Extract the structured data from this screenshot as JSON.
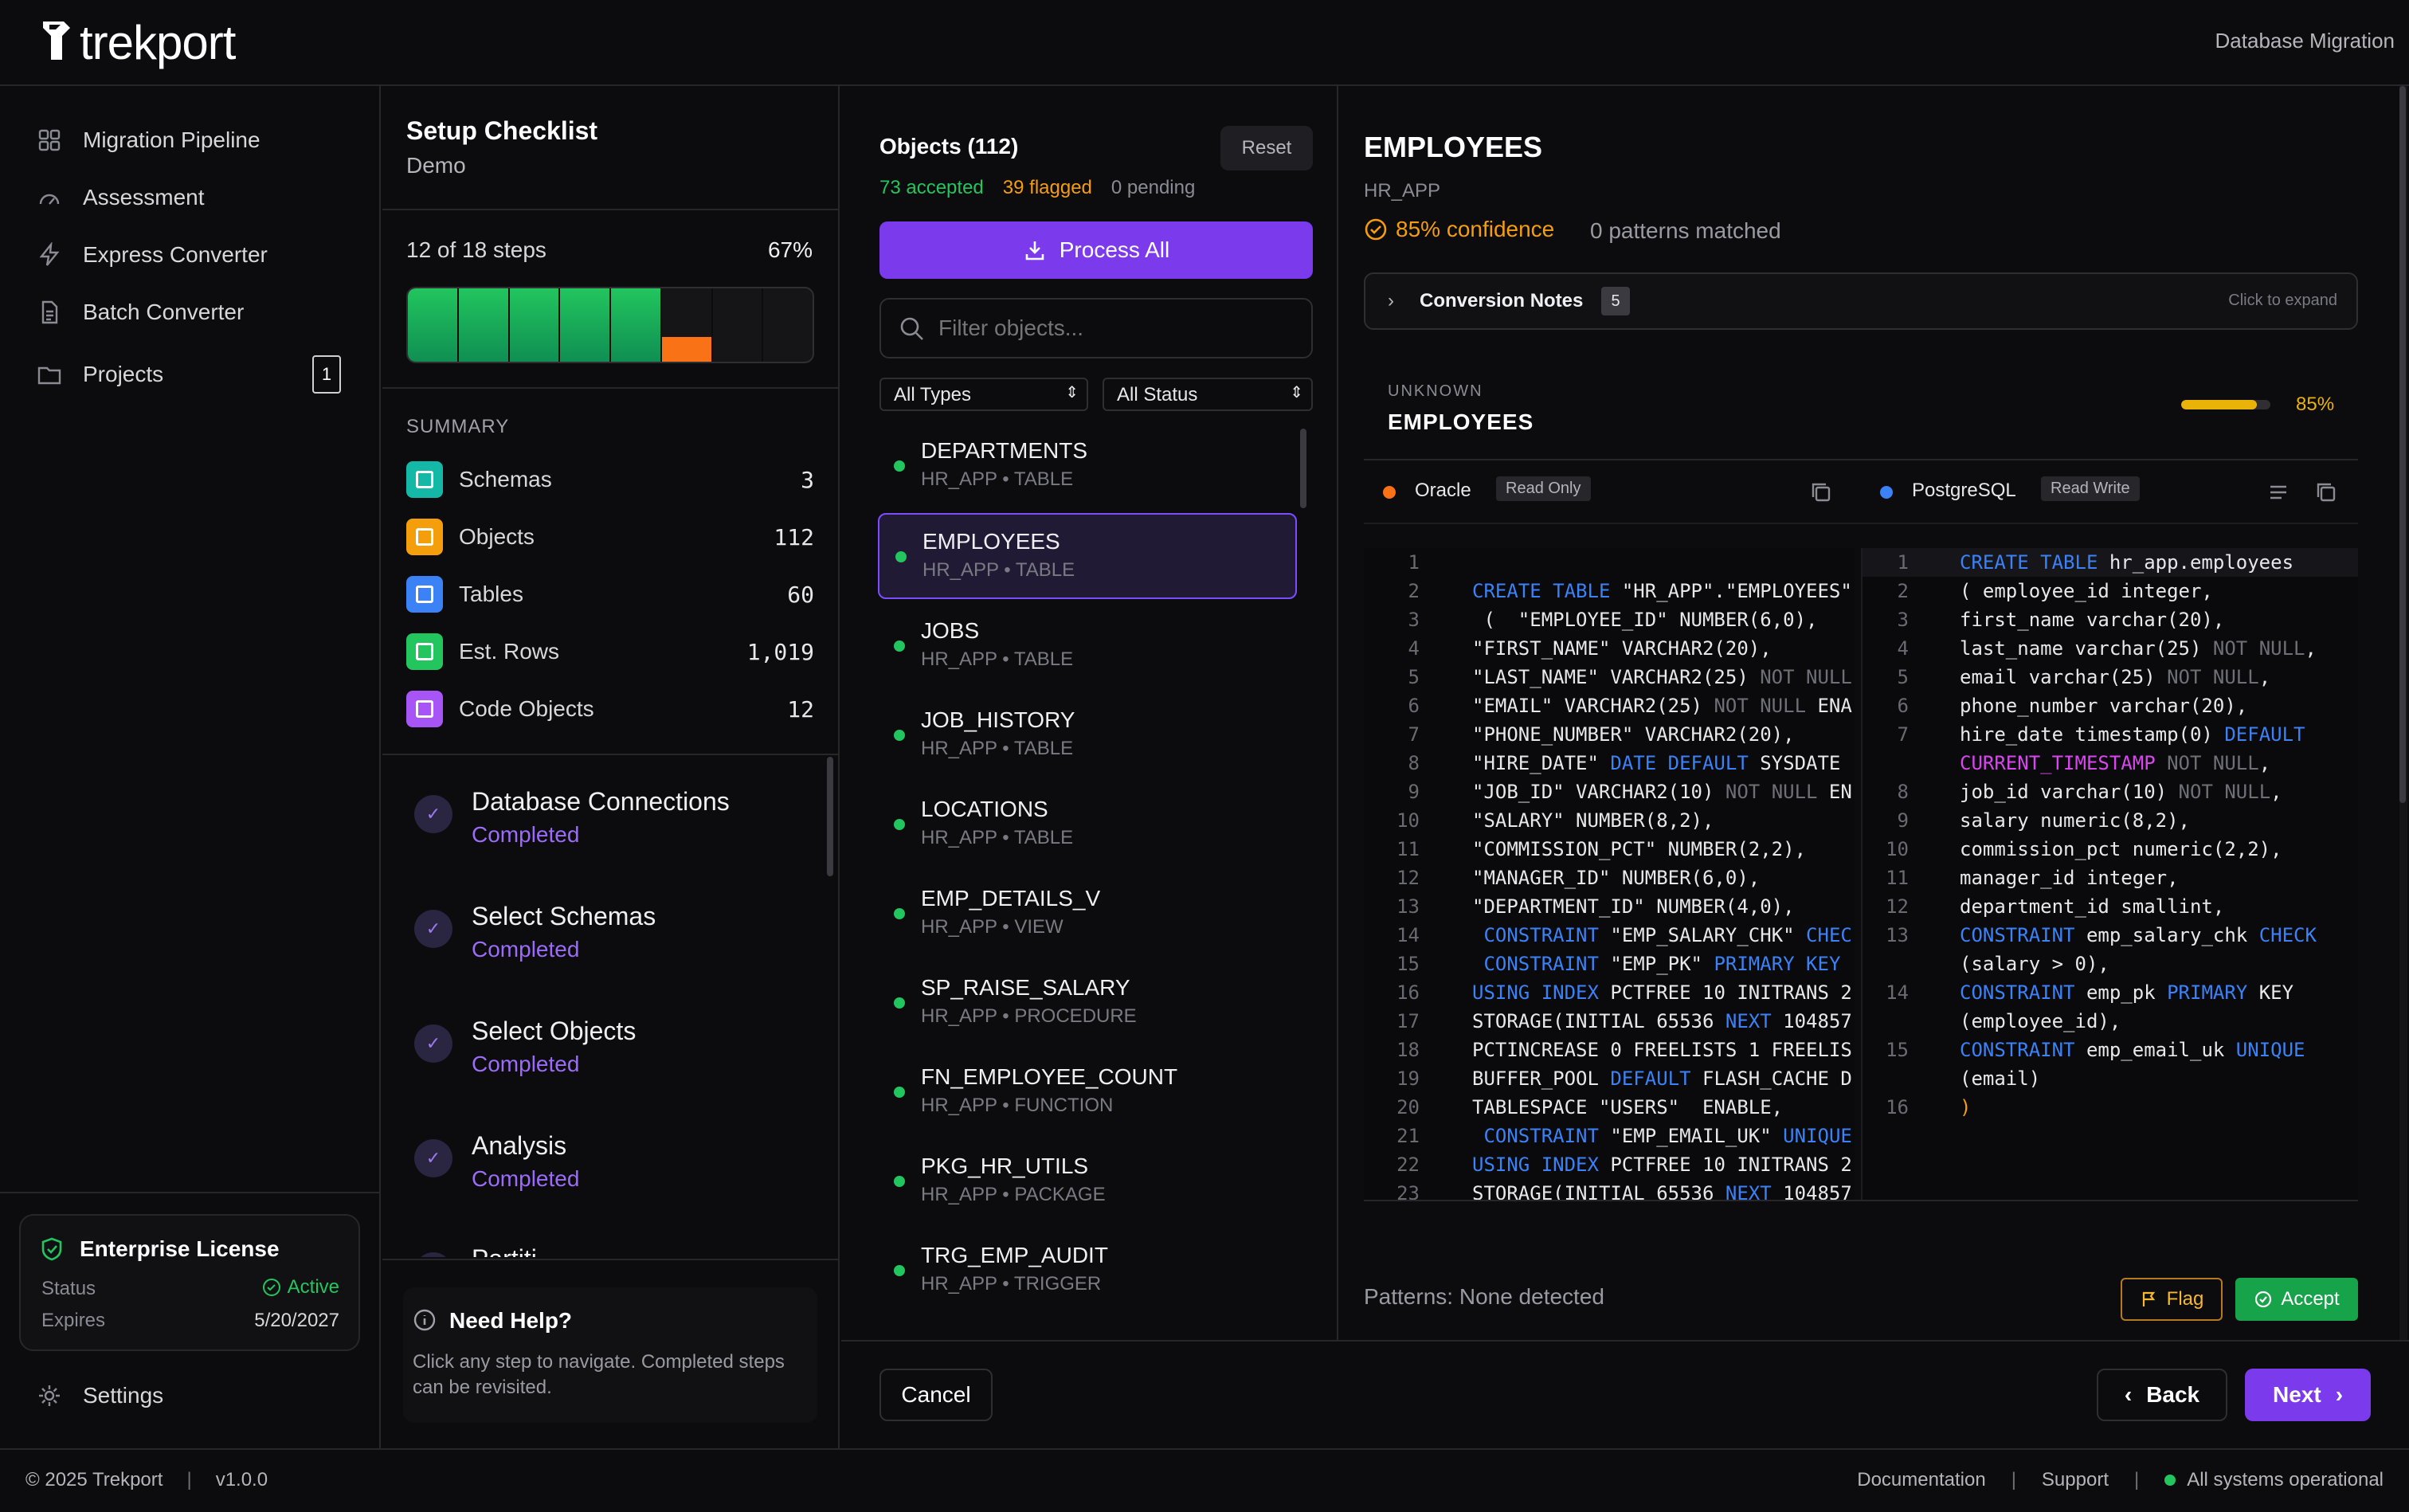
{
  "app": {
    "name": "trekport",
    "context": "Database Migration"
  },
  "sidebar": {
    "items": [
      {
        "label": "Migration Pipeline",
        "icon": "grid-icon"
      },
      {
        "label": "Assessment",
        "icon": "gauge-icon"
      },
      {
        "label": "Express Converter",
        "icon": "bolt-icon"
      },
      {
        "label": "Batch Converter",
        "icon": "document-icon"
      },
      {
        "label": "Projects",
        "icon": "folder-icon",
        "badge": "1"
      }
    ],
    "license": {
      "title": "Enterprise License",
      "status_label": "Status",
      "status_value": "Active",
      "expires_label": "Expires",
      "expires_value": "5/20/2027"
    },
    "settings_label": "Settings"
  },
  "checklist": {
    "title": "Setup Checklist",
    "subtitle": "Demo",
    "progress_text": "12 of 18 steps",
    "progress_percent_text": "67%",
    "progress_fraction": 0.67,
    "summary_heading": "SUMMARY",
    "summary": [
      {
        "label": "Schemas",
        "value": "3",
        "color": "#14b8a6"
      },
      {
        "label": "Objects",
        "value": "112",
        "color": "#f59e0b"
      },
      {
        "label": "Tables",
        "value": "60",
        "color": "#3b82f6"
      },
      {
        "label": "Est. Rows",
        "value": "1,019",
        "color": "#22c55e"
      },
      {
        "label": "Code Objects",
        "value": "12",
        "color": "#a855f7"
      }
    ],
    "steps": [
      {
        "title": "Database Connections",
        "status": "Completed"
      },
      {
        "title": "Select Schemas",
        "status": "Completed"
      },
      {
        "title": "Select Objects",
        "status": "Completed"
      },
      {
        "title": "Analysis",
        "status": "Completed"
      },
      {
        "title": "Partiti",
        "status": ""
      }
    ],
    "help": {
      "title": "Need Help?",
      "text": "Click any step to navigate. Completed steps can be revisited."
    }
  },
  "objects": {
    "title": "Objects (112)",
    "reset_label": "Reset",
    "accepted": "73 accepted",
    "flagged": "39 flagged",
    "pending": "0 pending",
    "process_all_label": "Process All",
    "filter_placeholder": "Filter objects...",
    "type_filter": "All Types",
    "status_filter": "All Status",
    "items": [
      {
        "name": "DEPARTMENTS",
        "meta": "HR_APP • TABLE"
      },
      {
        "name": "EMPLOYEES",
        "meta": "HR_APP • TABLE",
        "selected": true
      },
      {
        "name": "JOBS",
        "meta": "HR_APP • TABLE"
      },
      {
        "name": "JOB_HISTORY",
        "meta": "HR_APP • TABLE"
      },
      {
        "name": "LOCATIONS",
        "meta": "HR_APP • TABLE"
      },
      {
        "name": "EMP_DETAILS_V",
        "meta": "HR_APP • VIEW"
      },
      {
        "name": "SP_RAISE_SALARY",
        "meta": "HR_APP • PROCEDURE"
      },
      {
        "name": "FN_EMPLOYEE_COUNT",
        "meta": "HR_APP • FUNCTION"
      },
      {
        "name": "PKG_HR_UTILS",
        "meta": "HR_APP • PACKAGE"
      },
      {
        "name": "TRG_EMP_AUDIT",
        "meta": "HR_APP • TRIGGER"
      }
    ]
  },
  "detail": {
    "title": "EMPLOYEES",
    "schema": "HR_APP",
    "confidence": "85% confidence",
    "patterns_matched": "0 patterns matched",
    "notes_label": "Conversion Notes",
    "notes_count": "5",
    "notes_hint": "Click to expand",
    "type_label": "UNKNOWN",
    "object_name": "EMPLOYEES",
    "score_text": "85%",
    "score_fraction": 0.85,
    "source": {
      "label": "Oracle",
      "mode": "Read Only",
      "color": "#f97316"
    },
    "target": {
      "label": "PostgreSQL",
      "mode": "Read Write",
      "color": "#3b82f6"
    },
    "patterns_label": "Patterns:",
    "patterns_value": "None detected",
    "flag_label": "Flag",
    "accept_label": "Accept"
  },
  "source_code": [
    {
      "n": "1",
      "html": ""
    },
    {
      "n": "2",
      "html": "<span class='kw'>CREATE TABLE</span> \"HR_APP\".\"EMPLOYEES\""
    },
    {
      "n": "3",
      "html": " (  \"EMPLOYEE_ID\" NUMBER(6,0),"
    },
    {
      "n": "4",
      "html": "\"FIRST_NAME\" VARCHAR2(20),"
    },
    {
      "n": "5",
      "html": "\"LAST_NAME\" VARCHAR2(25) <span class='dim'>NOT NULL</span>"
    },
    {
      "n": "6",
      "html": "\"EMAIL\" VARCHAR2(25) <span class='dim'>NOT NULL</span> ENA"
    },
    {
      "n": "7",
      "html": "\"PHONE_NUMBER\" VARCHAR2(20),"
    },
    {
      "n": "8",
      "html": "\"HIRE_DATE\" <span class='kw'>DATE DEFAULT</span> SYSDATE"
    },
    {
      "n": "9",
      "html": "\"JOB_ID\" VARCHAR2(10) <span class='dim'>NOT NULL</span> EN"
    },
    {
      "n": "10",
      "html": "\"SALARY\" NUMBER(8,2),"
    },
    {
      "n": "11",
      "html": "\"COMMISSION_PCT\" NUMBER(2,2),"
    },
    {
      "n": "12",
      "html": "\"MANAGER_ID\" NUMBER(6,0),"
    },
    {
      "n": "13",
      "html": "\"DEPARTMENT_ID\" NUMBER(4,0),"
    },
    {
      "n": "14",
      "html": " <span class='kw'>CONSTRAINT</span> \"EMP_SALARY_CHK\" <span class='kw'>CHEC</span>"
    },
    {
      "n": "15",
      "html": " <span class='kw'>CONSTRAINT</span> \"EMP_PK\" <span class='kw'>PRIMARY KEY</span>"
    },
    {
      "n": "16",
      "html": "<span class='kw'>USING INDEX</span> PCTFREE 10 INITRANS 2"
    },
    {
      "n": "17",
      "html": "STORAGE(INITIAL 65536 <span class='kw'>NEXT</span> 104857"
    },
    {
      "n": "18",
      "html": "PCTINCREASE 0 FREELISTS 1 FREELIS"
    },
    {
      "n": "19",
      "html": "BUFFER_POOL <span class='kw'>DEFAULT</span> FLASH_CACHE D"
    },
    {
      "n": "20",
      "html": "TABLESPACE \"USERS\"  ENABLE,"
    },
    {
      "n": "21",
      "html": " <span class='kw'>CONSTRAINT</span> \"EMP_EMAIL_UK\" <span class='kw'>UNIQUE</span>"
    },
    {
      "n": "22",
      "html": "<span class='kw'>USING INDEX</span> PCTFREE 10 INITRANS 2"
    },
    {
      "n": "23",
      "html": "STORAGE(INITIAL 65536 <span class='kw'>NEXT</span> 104857"
    }
  ],
  "target_code": [
    {
      "n": "1",
      "html": "<span class='kw'>CREATE TABLE</span> hr_app.employees"
    },
    {
      "n": "2",
      "html": "( employee_id integer,"
    },
    {
      "n": "3",
      "html": "first_name varchar(20),"
    },
    {
      "n": "4",
      "html": "last_name varchar(25) <span class='dim'>NOT NULL</span>,"
    },
    {
      "n": "5",
      "html": "email varchar(25) <span class='dim'>NOT NULL</span>,"
    },
    {
      "n": "6",
      "html": "phone_number varchar(20),"
    },
    {
      "n": "7",
      "html": "hire_date timestamp(0) <span class='kw'>DEFAULT</span>"
    },
    {
      "n": "",
      "html": "<span class='kw2'>CURRENT_TIMESTAMP</span> <span class='dim'>NOT NULL</span>,"
    },
    {
      "n": "8",
      "html": "job_id varchar(10) <span class='dim'>NOT NULL</span>,"
    },
    {
      "n": "9",
      "html": "salary numeric(8,2),"
    },
    {
      "n": "10",
      "html": "commission_pct numeric(2,2),"
    },
    {
      "n": "11",
      "html": "manager_id integer,"
    },
    {
      "n": "12",
      "html": "department_id smallint,"
    },
    {
      "n": "13",
      "html": "<span class='kw'>CONSTRAINT</span> emp_salary_chk <span class='kw'>CHECK</span>"
    },
    {
      "n": "",
      "html": "(salary &gt; 0),"
    },
    {
      "n": "14",
      "html": "<span class='kw'>CONSTRAINT</span> emp_pk <span class='kw'>PRIMARY</span> KEY"
    },
    {
      "n": "",
      "html": "(employee_id),"
    },
    {
      "n": "15",
      "html": "<span class='kw'>CONSTRAINT</span> emp_email_uk <span class='kw'>UNIQUE</span>"
    },
    {
      "n": "",
      "html": "(email)"
    },
    {
      "n": "16",
      "html": "<span style='color:#f59e0b'>)</span>"
    }
  ],
  "wizard": {
    "cancel_label": "Cancel",
    "back_label": "Back",
    "next_label": "Next"
  },
  "footer": {
    "copyright": "© 2025 Trekport",
    "version": "v1.0.0",
    "docs": "Documentation",
    "support": "Support",
    "status": "All systems operational"
  }
}
